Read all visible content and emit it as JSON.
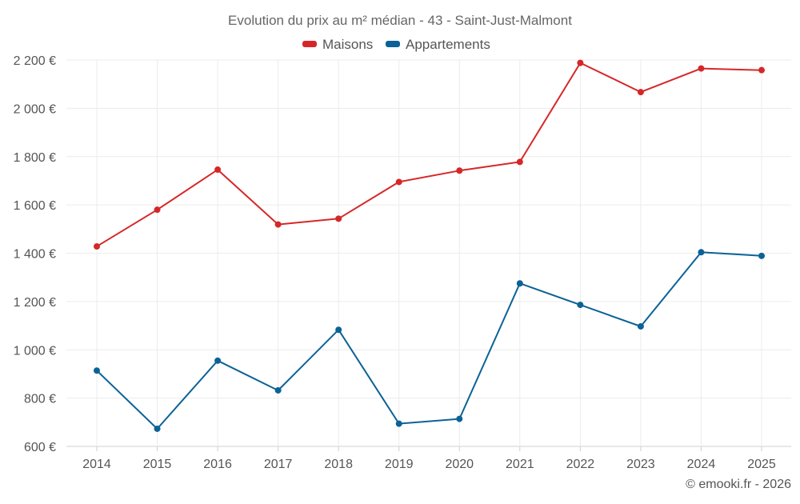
{
  "chart_data": {
    "type": "line",
    "title": "Evolution du prix au m² médian - 43 - Saint-Just-Malmont",
    "x": [
      2014,
      2015,
      2016,
      2017,
      2018,
      2019,
      2020,
      2021,
      2022,
      2023,
      2024,
      2025
    ],
    "x_tick_labels": [
      "2014",
      "2015",
      "2016",
      "2017",
      "2018",
      "2019",
      "2020",
      "2021",
      "2022",
      "2023",
      "2024",
      "2025"
    ],
    "ylim": [
      600,
      2200
    ],
    "y_ticks": [
      600,
      800,
      1000,
      1200,
      1400,
      1600,
      1800,
      2000,
      2200
    ],
    "y_tick_labels": [
      "600 €",
      "800 €",
      "1 000 €",
      "1 200 €",
      "1 400 €",
      "1 600 €",
      "1 800 €",
      "2 000 €",
      "2 200 €"
    ],
    "grid": true,
    "legend_position": "top-center",
    "series": [
      {
        "name": "Maisons",
        "color": "#d62728",
        "values": [
          1428,
          1580,
          1746,
          1519,
          1543,
          1695,
          1742,
          1778,
          2188,
          2067,
          2165,
          2158
        ]
      },
      {
        "name": "Appartements",
        "color": "#0b6296",
        "values": [
          914,
          673,
          955,
          832,
          1083,
          694,
          714,
          1275,
          1186,
          1097,
          1404,
          1389
        ]
      }
    ],
    "credit": "© emooki.fr - 2026"
  }
}
